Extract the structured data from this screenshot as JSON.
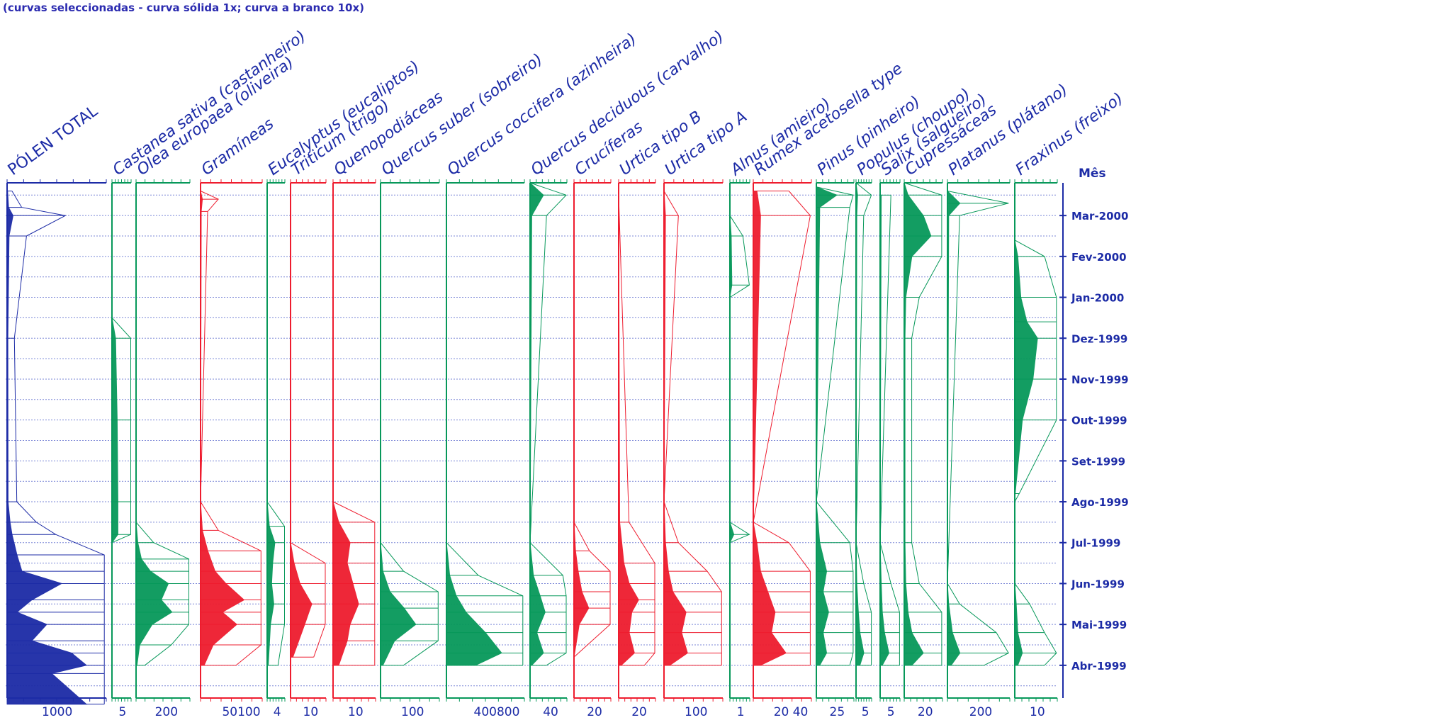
{
  "caption": "(curvas seleccionadas - curva sólida 1x; curva a branco 10x)",
  "colors": {
    "blue": "#1c2ba6",
    "green": "#07985a",
    "red": "#ee1c2e",
    "month_blue": "#1c2ba6",
    "grid": "#7a86d6"
  },
  "chart_data": {
    "type": "area",
    "months_label": "Mês",
    "months": [
      "Mar-2000",
      "Fev-2000",
      "Jan-2000",
      "Dez-1999",
      "Nov-1999",
      "Out-1999",
      "Set-1999",
      "Ago-1999",
      "Jul-1999",
      "Jun-1999",
      "Mai-1999",
      "Abr-1999"
    ],
    "month_positions": [
      12,
      11,
      10,
      9,
      8,
      7,
      6,
      5,
      4,
      3,
      2,
      1
    ],
    "taxa": [
      {
        "name": "PÓLEN TOTAL",
        "color": "blue",
        "scale_tick": "1000",
        "max": 2000,
        "profile": [
          [
            0.05,
            1600
          ],
          [
            0.8,
            900
          ],
          [
            1.0,
            1600
          ],
          [
            1.3,
            1300
          ],
          [
            1.6,
            500
          ],
          [
            2.0,
            800
          ],
          [
            2.3,
            200
          ],
          [
            2.6,
            500
          ],
          [
            3.0,
            1100
          ],
          [
            3.3,
            300
          ],
          [
            3.7,
            200
          ],
          [
            4.2,
            100
          ],
          [
            4.5,
            60
          ],
          [
            5,
            20
          ],
          [
            9,
            15
          ],
          [
            11.5,
            40
          ],
          [
            12.0,
            120
          ],
          [
            12.2,
            30
          ],
          [
            12.6,
            10
          ]
        ]
      },
      {
        "name": "Castanea sativa (castanheiro)",
        "color": "green",
        "scale_tick": "5",
        "max": 8,
        "profile": [
          [
            4,
            0
          ],
          [
            4.2,
            2.5
          ],
          [
            5,
            2.5
          ],
          [
            7,
            2.2
          ],
          [
            9,
            1.5
          ],
          [
            9.5,
            0
          ]
        ]
      },
      {
        "name": "Olea europaea (oliveira)",
        "color": "green",
        "scale_tick": "200",
        "max": 300,
        "profile": [
          [
            1,
            5
          ],
          [
            1.5,
            20
          ],
          [
            2.0,
            90
          ],
          [
            2.3,
            200
          ],
          [
            2.6,
            140
          ],
          [
            3.0,
            180
          ],
          [
            3.3,
            80
          ],
          [
            3.6,
            30
          ],
          [
            4.0,
            10
          ],
          [
            4.5,
            0
          ]
        ]
      },
      {
        "name": "Gramíneas",
        "color": "red",
        "scale_tick": "50100",
        "max": 170,
        "profile": [
          [
            1,
            10
          ],
          [
            1.5,
            35
          ],
          [
            2.0,
            100
          ],
          [
            2.3,
            60
          ],
          [
            2.6,
            120
          ],
          [
            3.0,
            70
          ],
          [
            3.3,
            40
          ],
          [
            3.8,
            20
          ],
          [
            4.3,
            5
          ],
          [
            5,
            0
          ],
          [
            12.1,
            2
          ],
          [
            12.4,
            5
          ],
          [
            12.6,
            0
          ]
        ]
      },
      {
        "name": "Eucalyptus (eucaliptos)",
        "color": "green",
        "scale_tick": "4",
        "max": 8,
        "profile": [
          [
            1,
            0.5
          ],
          [
            2.0,
            1.5
          ],
          [
            2.5,
            3
          ],
          [
            3.0,
            2
          ],
          [
            3.5,
            2.5
          ],
          [
            4.0,
            3.5
          ],
          [
            4.4,
            1
          ],
          [
            5,
            0
          ]
        ]
      },
      {
        "name": "Triticum (trigo)",
        "color": "red",
        "scale_tick": "10",
        "max": 30,
        "profile": [
          [
            1.2,
            2
          ],
          [
            2.0,
            12
          ],
          [
            2.5,
            18
          ],
          [
            3.0,
            8
          ],
          [
            3.5,
            3
          ],
          [
            4,
            0
          ]
        ]
      },
      {
        "name": "Quenopodiáceas",
        "color": "red",
        "scale_tick": "10",
        "max": 30,
        "profile": [
          [
            1,
            4
          ],
          [
            1.6,
            10
          ],
          [
            2.0,
            12
          ],
          [
            2.5,
            18
          ],
          [
            3.0,
            14
          ],
          [
            3.5,
            10
          ],
          [
            4.0,
            12
          ],
          [
            4.5,
            4
          ],
          [
            5,
            0
          ]
        ]
      },
      {
        "name": "Quercus suber (sobreiro)",
        "color": "green",
        "scale_tick": "100",
        "max": 250,
        "profile": [
          [
            1.0,
            10
          ],
          [
            1.6,
            60
          ],
          [
            2.0,
            150
          ],
          [
            2.4,
            100
          ],
          [
            2.8,
            40
          ],
          [
            3.3,
            10
          ],
          [
            4,
            0
          ]
        ]
      },
      {
        "name": "Quercus coccifera (azinheira)",
        "color": "green",
        "scale_tick": "400800",
        "max": 1200,
        "profile": [
          [
            1,
            450
          ],
          [
            1.3,
            850
          ],
          [
            1.8,
            600
          ],
          [
            2.3,
            300
          ],
          [
            2.7,
            150
          ],
          [
            3.2,
            50
          ],
          [
            4,
            0
          ]
        ]
      },
      {
        "name": "Quercus deciduous (carvalho)",
        "color": "green",
        "scale_tick": "40",
        "max": 110,
        "profile": [
          [
            1,
            5
          ],
          [
            1.3,
            40
          ],
          [
            1.8,
            20
          ],
          [
            2.3,
            45
          ],
          [
            2.7,
            30
          ],
          [
            3.2,
            10
          ],
          [
            4,
            0
          ],
          [
            12.0,
            5
          ],
          [
            12.5,
            40
          ],
          [
            12.8,
            0
          ]
        ]
      },
      {
        "name": "Crucíferas",
        "color": "red",
        "scale_tick": "20",
        "max": 70,
        "profile": [
          [
            1.2,
            0
          ],
          [
            2.0,
            10
          ],
          [
            2.4,
            28
          ],
          [
            2.8,
            15
          ],
          [
            3.3,
            8
          ],
          [
            3.8,
            3
          ],
          [
            4.5,
            0
          ]
        ]
      },
      {
        "name": "Urtica tipo B",
        "color": "red",
        "scale_tick": "20",
        "max": 70,
        "profile": [
          [
            1,
            5
          ],
          [
            1.3,
            30
          ],
          [
            1.8,
            20
          ],
          [
            2.3,
            25
          ],
          [
            2.6,
            38
          ],
          [
            3.0,
            20
          ],
          [
            3.5,
            10
          ],
          [
            4.5,
            2
          ],
          [
            12.5,
            0
          ]
        ]
      },
      {
        "name": "Urtica tipo A",
        "color": "red",
        "scale_tick": "100",
        "max": 200,
        "profile": [
          [
            1,
            20
          ],
          [
            1.3,
            80
          ],
          [
            1.8,
            60
          ],
          [
            2.3,
            75
          ],
          [
            2.8,
            30
          ],
          [
            3.3,
            15
          ],
          [
            4.0,
            5
          ],
          [
            5,
            0
          ],
          [
            12.0,
            5
          ],
          [
            12.6,
            0
          ]
        ]
      },
      {
        "name": "Alnus (amieiro)",
        "color": "green",
        "scale_tick": "1",
        "max": 3,
        "profile": [
          [
            4.0,
            0
          ],
          [
            4.2,
            0.6
          ],
          [
            4.5,
            0
          ],
          [
            10.0,
            0
          ],
          [
            10.3,
            0.3
          ],
          [
            11.5,
            0.2
          ],
          [
            12.0,
            0
          ]
        ]
      },
      {
        "name": "Rumex acetosella type",
        "color": "red",
        "scale_tick": "20 40",
        "max": 80,
        "profile": [
          [
            1,
            10
          ],
          [
            1.3,
            45
          ],
          [
            1.8,
            25
          ],
          [
            2.3,
            30
          ],
          [
            2.8,
            20
          ],
          [
            3.3,
            10
          ],
          [
            4.0,
            5
          ],
          [
            4.5,
            0
          ],
          [
            12.0,
            10
          ],
          [
            12.6,
            5
          ]
        ]
      },
      {
        "name": "Pinus (pinheiro)",
        "color": "green",
        "scale_tick": "25",
        "max": 55,
        "profile": [
          [
            1,
            5
          ],
          [
            1.3,
            15
          ],
          [
            1.8,
            10
          ],
          [
            2.3,
            18
          ],
          [
            2.8,
            10
          ],
          [
            3.3,
            15
          ],
          [
            4.0,
            5
          ],
          [
            5,
            0
          ],
          [
            12.2,
            5
          ],
          [
            12.5,
            30
          ],
          [
            12.7,
            0
          ]
        ]
      },
      {
        "name": "Populus (choupo)",
        "color": "green",
        "scale_tick": "5",
        "max": 20,
        "profile": [
          [
            1,
            5
          ],
          [
            1.3,
            10
          ],
          [
            1.8,
            5
          ],
          [
            2.3,
            3
          ],
          [
            3,
            1
          ],
          [
            4,
            0
          ],
          [
            12,
            1
          ],
          [
            12.5,
            2
          ],
          [
            12.8,
            0
          ]
        ]
      },
      {
        "name": "Salix (salgueiro)",
        "color": "green",
        "scale_tick": "5",
        "max": 18,
        "profile": [
          [
            1,
            2
          ],
          [
            1.3,
            8
          ],
          [
            1.8,
            4
          ],
          [
            2.3,
            2
          ],
          [
            3,
            1
          ],
          [
            4,
            0
          ],
          [
            12.5,
            1
          ]
        ]
      },
      {
        "name": "Cupressáceas",
        "color": "green",
        "scale_tick": "20",
        "max": 50,
        "profile": [
          [
            1,
            10
          ],
          [
            1.3,
            25
          ],
          [
            1.8,
            10
          ],
          [
            2.3,
            5
          ],
          [
            3,
            2
          ],
          [
            4,
            1
          ],
          [
            9,
            1
          ],
          [
            10,
            2
          ],
          [
            11.0,
            10
          ],
          [
            11.5,
            35
          ],
          [
            12.0,
            25
          ],
          [
            12.5,
            5
          ],
          [
            12.8,
            0
          ]
        ]
      },
      {
        "name": "Platanus (plátano)",
        "color": "green",
        "scale_tick": "200",
        "max": 500,
        "profile": [
          [
            1,
            30
          ],
          [
            1.3,
            100
          ],
          [
            1.8,
            40
          ],
          [
            2.5,
            10
          ],
          [
            3,
            0
          ],
          [
            12,
            10
          ],
          [
            12.3,
            100
          ],
          [
            12.6,
            0
          ]
        ]
      },
      {
        "name": "Fraxinus (freixo)",
        "color": "green",
        "scale_tick": "10",
        "max": 28,
        "profile": [
          [
            1,
            2
          ],
          [
            1.3,
            5
          ],
          [
            1.8,
            2
          ],
          [
            2.5,
            1
          ],
          [
            3,
            0
          ],
          [
            5,
            0
          ],
          [
            5.2,
            0.3
          ],
          [
            7,
            5
          ],
          [
            8,
            12
          ],
          [
            9,
            15
          ],
          [
            9.4,
            8
          ],
          [
            10,
            4
          ],
          [
            11,
            2
          ],
          [
            11.4,
            0
          ]
        ]
      }
    ]
  }
}
